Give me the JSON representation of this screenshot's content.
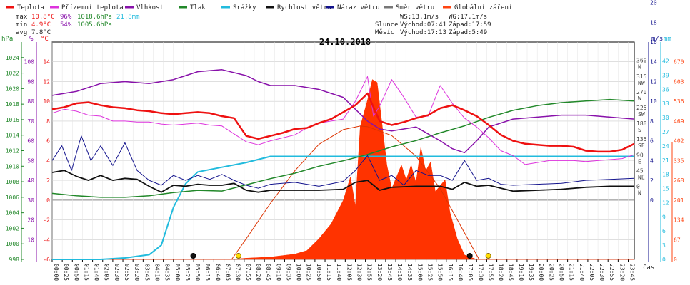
{
  "chart_data": {
    "type": "line",
    "title": "24.10.2018",
    "xlabel": "čas",
    "legend_position": "top",
    "legend": [
      {
        "name": "Teplota",
        "color": "#ee1111"
      },
      {
        "name": "Přízemní teplota",
        "color": "#dd33dd"
      },
      {
        "name": "Vlhkost",
        "color": "#8811aa"
      },
      {
        "name": "Tlak",
        "color": "#22882a"
      },
      {
        "name": "Srážky",
        "color": "#22bbdd"
      },
      {
        "name": "Rychlost větru",
        "color": "#111111"
      },
      {
        "name": "Náraz větru",
        "color": "#11118c"
      },
      {
        "name": "Směr větru",
        "color": "#777777"
      },
      {
        "name": "Globální záření",
        "color": "#ff4411"
      }
    ],
    "stats": {
      "max": {
        "label": "max",
        "temp": "10.8°C",
        "hum": "96%",
        "press": "1018.6hPa",
        "rain": "21.8mm"
      },
      "min": {
        "label": "min",
        "temp": "4.9°C",
        "hum": "54%",
        "press": "1005.6hPa"
      },
      "avg": {
        "label": "avg",
        "temp": "7.8°C"
      }
    },
    "info": {
      "ws": "WS:13.1m/s",
      "wg": "WG:17.1m/s",
      "sun_label": "Slunce",
      "sun_rise": "Východ:07:41",
      "sun_set": "Západ:17:59",
      "moon_label": "Měsíc",
      "moon_rise": "Východ:17:13",
      "moon_set": "Západ:5:49"
    },
    "axes": {
      "pressure": {
        "unit": "hPa",
        "ticks": [
          "998",
          "1000",
          "1002",
          "1004",
          "1006",
          "1008",
          "1010",
          "1012",
          "1014",
          "1016",
          "1018",
          "1020",
          "1022",
          "1024"
        ]
      },
      "humidity": {
        "unit": "%",
        "ticks": [
          "10",
          "20",
          "30",
          "40",
          "50",
          "60",
          "70",
          "80",
          "90",
          "100"
        ]
      },
      "temperature": {
        "unit": "°C",
        "ticks": [
          "-6",
          "-4",
          "-2",
          "0",
          "2",
          "4",
          "6",
          "8",
          "10",
          "12",
          "14"
        ]
      },
      "wind_dir": {
        "unit": "°",
        "ticks": [
          "0",
          "45",
          "90",
          "135",
          "180",
          "225",
          "270",
          "315",
          "360"
        ],
        "labels": [
          "N",
          "NE",
          "E",
          "SE",
          "S",
          "SW",
          "W",
          "NW",
          "N"
        ]
      },
      "wind_speed": {
        "unit": "m/s",
        "ticks": [
          "0",
          "2",
          "4",
          "6",
          "8",
          "10",
          "12",
          "14",
          "16",
          "18",
          "20"
        ]
      },
      "rain": {
        "unit": "mm",
        "ticks": [
          "0",
          "3",
          "6",
          "9",
          "12",
          "15",
          "18",
          "21",
          "24",
          "27",
          "30",
          "33",
          "36",
          "39",
          "42"
        ]
      },
      "radiation": {
        "unit": "W/m²",
        "ticks": [
          "0",
          "67",
          "134",
          "201",
          "268",
          "335",
          "402",
          "469",
          "536",
          "603",
          "670"
        ]
      }
    },
    "x_ticks": [
      "00:00",
      "00:25",
      "00:50",
      "01:15",
      "01:40",
      "02:05",
      "02:30",
      "02:55",
      "03:20",
      "03:45",
      "04:10",
      "04:35",
      "05:00",
      "05:25",
      "05:50",
      "06:15",
      "06:40",
      "07:05",
      "07:30",
      "07:55",
      "08:20",
      "08:45",
      "09:10",
      "09:35",
      "10:00",
      "10:25",
      "10:50",
      "11:15",
      "11:40",
      "12:05",
      "12:30",
      "12:55",
      "13:20",
      "13:45",
      "14:10",
      "14:35",
      "15:00",
      "15:25",
      "15:50",
      "16:15",
      "16:40",
      "17:05",
      "17:30",
      "17:55",
      "18:20",
      "18:45",
      "19:10",
      "19:35",
      "20:00",
      "20:25",
      "20:50",
      "21:15",
      "21:40",
      "22:05",
      "22:30",
      "22:55",
      "23:20",
      "23:45"
    ],
    "series": {
      "temperature": [
        [
          0,
          9.2
        ],
        [
          0.5,
          9.4
        ],
        [
          1,
          9.8
        ],
        [
          1.5,
          9.9
        ],
        [
          2,
          9.6
        ],
        [
          2.5,
          9.4
        ],
        [
          3,
          9.3
        ],
        [
          3.5,
          9.1
        ],
        [
          4,
          9.0
        ],
        [
          4.5,
          8.8
        ],
        [
          5,
          8.7
        ],
        [
          5.5,
          8.8
        ],
        [
          6,
          8.9
        ],
        [
          6.5,
          8.8
        ],
        [
          7,
          8.5
        ],
        [
          7.5,
          8.3
        ],
        [
          8,
          6.5
        ],
        [
          8.5,
          6.2
        ],
        [
          9,
          6.5
        ],
        [
          9.5,
          6.8
        ],
        [
          10,
          7.2
        ],
        [
          10.5,
          7.3
        ],
        [
          11,
          7.8
        ],
        [
          11.5,
          8.2
        ],
        [
          12,
          8.9
        ],
        [
          12.5,
          9.6
        ],
        [
          13,
          10.8
        ],
        [
          13.25,
          9.4
        ],
        [
          13.5,
          8.0
        ],
        [
          14,
          7.6
        ],
        [
          14.5,
          7.9
        ],
        [
          15,
          8.3
        ],
        [
          15.5,
          8.6
        ],
        [
          16,
          9.3
        ],
        [
          16.5,
          9.6
        ],
        [
          17,
          9.1
        ],
        [
          17.5,
          8.5
        ],
        [
          18,
          7.6
        ],
        [
          18.5,
          6.6
        ],
        [
          19,
          6.0
        ],
        [
          19.5,
          5.7
        ],
        [
          20,
          5.6
        ],
        [
          20.5,
          5.5
        ],
        [
          21,
          5.5
        ],
        [
          21.5,
          5.4
        ],
        [
          22,
          5.0
        ],
        [
          22.5,
          4.9
        ],
        [
          23,
          4.9
        ],
        [
          23.5,
          5.1
        ],
        [
          24,
          5.7
        ]
      ],
      "ground_temperature": [
        [
          0,
          8.8
        ],
        [
          0.5,
          9.2
        ],
        [
          1,
          9.0
        ],
        [
          1.5,
          8.6
        ],
        [
          2,
          8.5
        ],
        [
          2.5,
          8.0
        ],
        [
          3,
          8.0
        ],
        [
          3.5,
          7.9
        ],
        [
          4,
          7.9
        ],
        [
          4.5,
          7.7
        ],
        [
          5,
          7.6
        ],
        [
          5.5,
          7.7
        ],
        [
          6,
          7.8
        ],
        [
          6.5,
          7.6
        ],
        [
          7,
          7.5
        ],
        [
          7.5,
          6.7
        ],
        [
          8,
          5.9
        ],
        [
          8.5,
          5.6
        ],
        [
          9,
          6.0
        ],
        [
          9.5,
          6.3
        ],
        [
          10,
          6.6
        ],
        [
          10.5,
          7.3
        ],
        [
          11,
          7.8
        ],
        [
          11.5,
          8.0
        ],
        [
          12,
          8.2
        ],
        [
          12.5,
          10.0
        ],
        [
          13,
          12.5
        ],
        [
          13.25,
          8.5
        ],
        [
          13.5,
          9.5
        ],
        [
          14,
          12.2
        ],
        [
          14.5,
          10.4
        ],
        [
          15,
          8.4
        ],
        [
          15.5,
          8.5
        ],
        [
          16,
          11.6
        ],
        [
          16.5,
          9.8
        ],
        [
          17,
          8.3
        ],
        [
          17.5,
          7.4
        ],
        [
          18,
          6.3
        ],
        [
          18.5,
          5.0
        ],
        [
          19,
          4.5
        ],
        [
          19.5,
          3.6
        ],
        [
          20,
          3.8
        ],
        [
          20.5,
          4.0
        ],
        [
          21,
          4.0
        ],
        [
          21.5,
          4.0
        ],
        [
          22,
          3.9
        ],
        [
          22.5,
          4.0
        ],
        [
          23,
          4.1
        ],
        [
          23.5,
          4.2
        ],
        [
          24,
          4.6
        ]
      ],
      "humidity": [
        [
          0,
          83
        ],
        [
          1,
          85
        ],
        [
          2,
          89
        ],
        [
          3,
          90
        ],
        [
          4,
          89
        ],
        [
          5,
          91
        ],
        [
          6,
          95
        ],
        [
          7,
          96
        ],
        [
          8,
          93
        ],
        [
          8.5,
          90
        ],
        [
          9,
          88
        ],
        [
          10,
          88
        ],
        [
          11,
          86
        ],
        [
          12,
          82
        ],
        [
          12.5,
          76
        ],
        [
          13,
          70
        ],
        [
          13.5,
          66
        ],
        [
          14,
          65
        ],
        [
          15,
          67
        ],
        [
          16,
          60
        ],
        [
          16.5,
          56
        ],
        [
          17,
          54
        ],
        [
          17.5,
          60
        ],
        [
          18,
          67
        ],
        [
          19,
          71
        ],
        [
          20,
          72
        ],
        [
          21,
          73
        ],
        [
          22,
          73
        ],
        [
          23,
          72
        ],
        [
          24,
          71
        ]
      ],
      "pressure": [
        [
          0,
          1006.5
        ],
        [
          1,
          1006.2
        ],
        [
          2,
          1006.0
        ],
        [
          3,
          1006.0
        ],
        [
          4,
          1006.2
        ],
        [
          5,
          1006.6
        ],
        [
          6,
          1006.9
        ],
        [
          7,
          1006.8
        ],
        [
          8,
          1007.6
        ],
        [
          9,
          1008.4
        ],
        [
          10,
          1009.1
        ],
        [
          11,
          1010.0
        ],
        [
          12,
          1010.7
        ],
        [
          13,
          1011.5
        ],
        [
          14,
          1012.5
        ],
        [
          15,
          1013.3
        ],
        [
          16,
          1014.3
        ],
        [
          17,
          1015.2
        ],
        [
          18,
          1016.3
        ],
        [
          19,
          1017.2
        ],
        [
          20,
          1017.8
        ],
        [
          21,
          1018.2
        ],
        [
          22,
          1018.4
        ],
        [
          23,
          1018.6
        ],
        [
          24,
          1018.4
        ]
      ],
      "rain": [
        [
          0,
          0
        ],
        [
          2,
          0
        ],
        [
          3,
          0.3
        ],
        [
          4,
          1.0
        ],
        [
          4.5,
          3.0
        ],
        [
          5,
          11.0
        ],
        [
          5.5,
          16.0
        ],
        [
          6,
          18.5
        ],
        [
          7,
          19.5
        ],
        [
          8,
          20.5
        ],
        [
          9,
          21.8
        ],
        [
          24,
          21.8
        ]
      ],
      "wind_speed": [
        [
          0,
          2.8
        ],
        [
          0.5,
          3.0
        ],
        [
          1,
          2.4
        ],
        [
          1.5,
          2.0
        ],
        [
          2,
          2.5
        ],
        [
          2.5,
          2.0
        ],
        [
          3,
          2.2
        ],
        [
          3.5,
          2.1
        ],
        [
          4,
          1.4
        ],
        [
          4.5,
          0.8
        ],
        [
          5,
          1.5
        ],
        [
          5.5,
          1.4
        ],
        [
          6,
          1.6
        ],
        [
          6.5,
          1.5
        ],
        [
          7,
          1.5
        ],
        [
          7.5,
          1.7
        ],
        [
          8,
          1.0
        ],
        [
          8.5,
          0.8
        ],
        [
          9,
          1.0
        ],
        [
          10,
          1.0
        ],
        [
          11,
          1.0
        ],
        [
          12,
          1.1
        ],
        [
          12.5,
          1.8
        ],
        [
          13,
          2.0
        ],
        [
          13.5,
          1.0
        ],
        [
          14,
          1.3
        ],
        [
          15,
          1.4
        ],
        [
          16,
          1.4
        ],
        [
          16.5,
          1.1
        ],
        [
          17,
          1.8
        ],
        [
          17.5,
          1.4
        ],
        [
          18,
          1.5
        ],
        [
          19,
          0.9
        ],
        [
          20,
          1.0
        ],
        [
          21,
          1.1
        ],
        [
          22,
          1.3
        ],
        [
          23,
          1.4
        ],
        [
          24,
          1.4
        ]
      ],
      "wind_gust": [
        [
          0,
          4.0
        ],
        [
          0.4,
          5.5
        ],
        [
          0.8,
          3.0
        ],
        [
          1.2,
          6.5
        ],
        [
          1.6,
          4.0
        ],
        [
          2,
          5.5
        ],
        [
          2.5,
          3.5
        ],
        [
          3,
          5.8
        ],
        [
          3.5,
          3.0
        ],
        [
          4,
          2.0
        ],
        [
          4.5,
          1.5
        ],
        [
          5,
          2.5
        ],
        [
          5.5,
          2.0
        ],
        [
          6,
          2.5
        ],
        [
          6.5,
          2.1
        ],
        [
          7,
          2.6
        ],
        [
          7.5,
          2.0
        ],
        [
          8,
          1.5
        ],
        [
          8.5,
          1.2
        ],
        [
          9,
          1.6
        ],
        [
          10,
          1.8
        ],
        [
          11,
          1.4
        ],
        [
          12,
          1.9
        ],
        [
          12.5,
          3.0
        ],
        [
          13,
          4.5
        ],
        [
          13.5,
          2.0
        ],
        [
          14,
          2.5
        ],
        [
          14.5,
          1.5
        ],
        [
          15,
          3.0
        ],
        [
          15.5,
          2.5
        ],
        [
          16,
          2.5
        ],
        [
          16.5,
          2.0
        ],
        [
          17,
          4.0
        ],
        [
          17.5,
          2.0
        ],
        [
          18,
          2.2
        ],
        [
          18.5,
          1.6
        ],
        [
          19,
          1.5
        ],
        [
          20,
          1.6
        ],
        [
          21,
          1.7
        ],
        [
          22,
          2.0
        ],
        [
          23,
          2.1
        ],
        [
          24,
          2.2
        ]
      ],
      "radiation": [
        [
          0,
          0
        ],
        [
          7.4,
          0
        ],
        [
          8,
          4
        ],
        [
          9,
          8
        ],
        [
          10,
          18
        ],
        [
          10.5,
          30
        ],
        [
          11,
          70
        ],
        [
          11.5,
          120
        ],
        [
          12,
          200
        ],
        [
          12.3,
          280
        ],
        [
          12.5,
          180
        ],
        [
          12.7,
          450
        ],
        [
          13,
          540
        ],
        [
          13.2,
          610
        ],
        [
          13.4,
          600
        ],
        [
          13.6,
          460
        ],
        [
          13.8,
          320
        ],
        [
          14,
          240
        ],
        [
          14.2,
          280
        ],
        [
          14.4,
          320
        ],
        [
          14.6,
          270
        ],
        [
          14.8,
          320
        ],
        [
          15,
          260
        ],
        [
          15.2,
          380
        ],
        [
          15.4,
          300
        ],
        [
          15.6,
          330
        ],
        [
          15.8,
          230
        ],
        [
          16,
          250
        ],
        [
          16.2,
          270
        ],
        [
          16.4,
          160
        ],
        [
          16.7,
          70
        ],
        [
          17,
          15
        ],
        [
          17.5,
          0
        ],
        [
          24,
          0
        ]
      ],
      "clear_sky_radiation": [
        [
          7.4,
          0
        ],
        [
          8,
          70
        ],
        [
          9,
          190
        ],
        [
          10,
          300
        ],
        [
          11,
          390
        ],
        [
          12,
          440
        ],
        [
          12.7,
          452
        ],
        [
          13,
          450
        ],
        [
          14,
          420
        ],
        [
          15,
          350
        ],
        [
          16,
          240
        ],
        [
          17,
          90
        ],
        [
          17.6,
          0
        ]
      ]
    }
  }
}
